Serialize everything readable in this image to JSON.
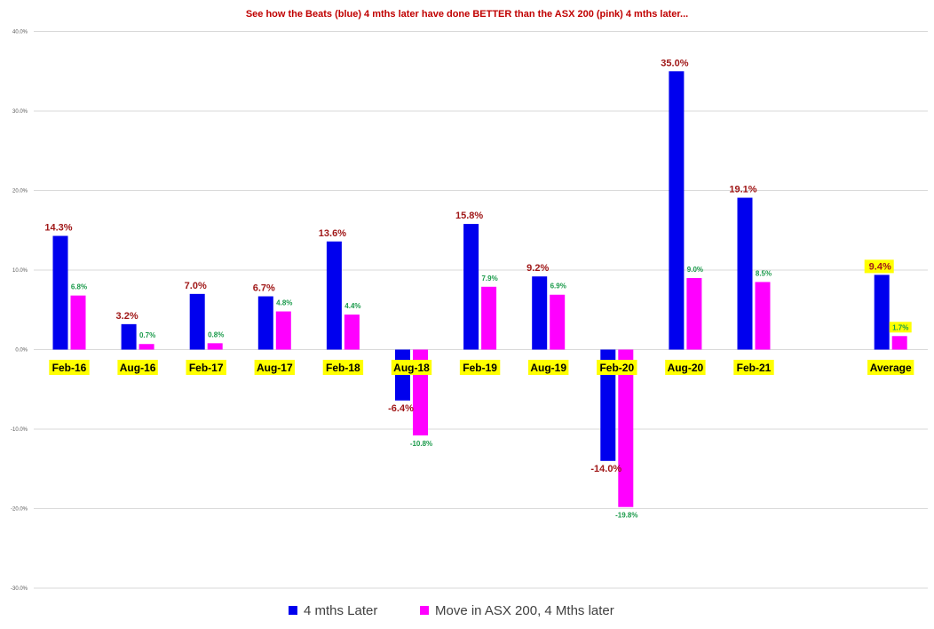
{
  "chart_data": {
    "type": "bar",
    "title": "See how the Beats (blue) 4 mths later have done BETTER than the ASX 200  (pink) 4 mths later...",
    "categories": [
      "Feb-16",
      "Aug-16",
      "Feb-17",
      "Aug-17",
      "Feb-18",
      "Aug-18",
      "Feb-19",
      "Aug-19",
      "Feb-20",
      "Aug-20",
      "Feb-21",
      "",
      "Average"
    ],
    "series": [
      {
        "name": "4 mths Later",
        "color": "#0000ee",
        "values": [
          14.3,
          3.2,
          7.0,
          6.7,
          13.6,
          -6.4,
          15.8,
          9.2,
          -14.0,
          35.0,
          19.1,
          null,
          9.4
        ],
        "labels": [
          "14.3%",
          "3.2%",
          "7.0%",
          "6.7%",
          "13.6%",
          "-6.4%",
          "15.8%",
          "9.2%",
          "-14.0%",
          "35.0%",
          "19.1%",
          "",
          "9.4%"
        ]
      },
      {
        "name": "Move in ASX 200,  4 Mths later",
        "color": "#ff00ff",
        "values": [
          6.8,
          0.7,
          0.8,
          4.8,
          4.4,
          -10.8,
          7.9,
          6.9,
          -19.8,
          9.0,
          8.5,
          null,
          1.7
        ],
        "labels": [
          "6.8%",
          "0.7%",
          "0.8%",
          "4.8%",
          "4.4%",
          "-10.8%",
          "7.9%",
          "6.9%",
          "-19.8%",
          "9.0%",
          "8.5%",
          "",
          "1.7%"
        ]
      }
    ],
    "ylim": [
      -30,
      40
    ],
    "yticks": [
      40,
      30,
      20,
      10,
      0,
      -10,
      -20,
      -30
    ],
    "ytick_labels": [
      "40.0%",
      "30.0%",
      "20.0%",
      "10.0%",
      "0.0%",
      "-10.0%",
      "-20.0%",
      "-30.0%"
    ],
    "grid": true,
    "legend": "bottom",
    "category_highlight_color": "#ffff00",
    "average_label_highlight_color": "#ffff00"
  }
}
